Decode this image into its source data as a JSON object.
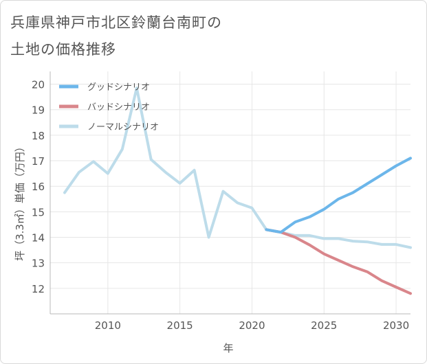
{
  "title_lines": [
    "兵庫県神戸市北区鈴蘭台南町の",
    "土地の価格推移"
  ],
  "chart_data": {
    "type": "line",
    "title": "兵庫県神戸市北区鈴蘭台南町の土地の価格推移",
    "xlabel": "年",
    "ylabel": "坪（3.3㎡）単価（万円）",
    "xlim": [
      2006,
      2031
    ],
    "ylim": [
      11,
      20.5
    ],
    "xticks": [
      2010,
      2015,
      2020,
      2025,
      2030
    ],
    "yticks": [
      12,
      13,
      14,
      15,
      16,
      17,
      18,
      19,
      20
    ],
    "grid": true,
    "legend_position": "top-left",
    "series": [
      {
        "name": "グッドシナリオ",
        "color": "#6cb6ea",
        "x": [
          2021,
          2022,
          2023,
          2024,
          2025,
          2026,
          2027,
          2028,
          2029,
          2030,
          2031
        ],
        "y": [
          14.3,
          14.2,
          14.6,
          14.8,
          15.1,
          15.5,
          15.75,
          16.1,
          16.45,
          16.8,
          17.1
        ]
      },
      {
        "name": "バッドシナリオ",
        "color": "#d9868b",
        "x": [
          2021,
          2022,
          2023,
          2024,
          2025,
          2026,
          2027,
          2028,
          2029,
          2030,
          2031
        ],
        "y": [
          14.3,
          14.2,
          14.0,
          13.7,
          13.35,
          13.1,
          12.85,
          12.65,
          12.3,
          12.05,
          11.8
        ]
      },
      {
        "name": "ノーマルシナリオ",
        "color": "#bddcea",
        "x": [
          2007,
          2008,
          2009,
          2010,
          2011,
          2012,
          2013,
          2014,
          2015,
          2016,
          2017,
          2018,
          2019,
          2020,
          2021,
          2022,
          2023,
          2024,
          2025,
          2026,
          2027,
          2028,
          2029,
          2030,
          2031
        ],
        "y": [
          15.75,
          16.55,
          16.97,
          16.5,
          17.45,
          19.85,
          17.05,
          16.55,
          16.12,
          16.63,
          14.0,
          15.8,
          15.35,
          15.15,
          14.3,
          14.2,
          14.07,
          14.07,
          13.95,
          13.95,
          13.85,
          13.82,
          13.72,
          13.72,
          13.6
        ]
      }
    ]
  }
}
